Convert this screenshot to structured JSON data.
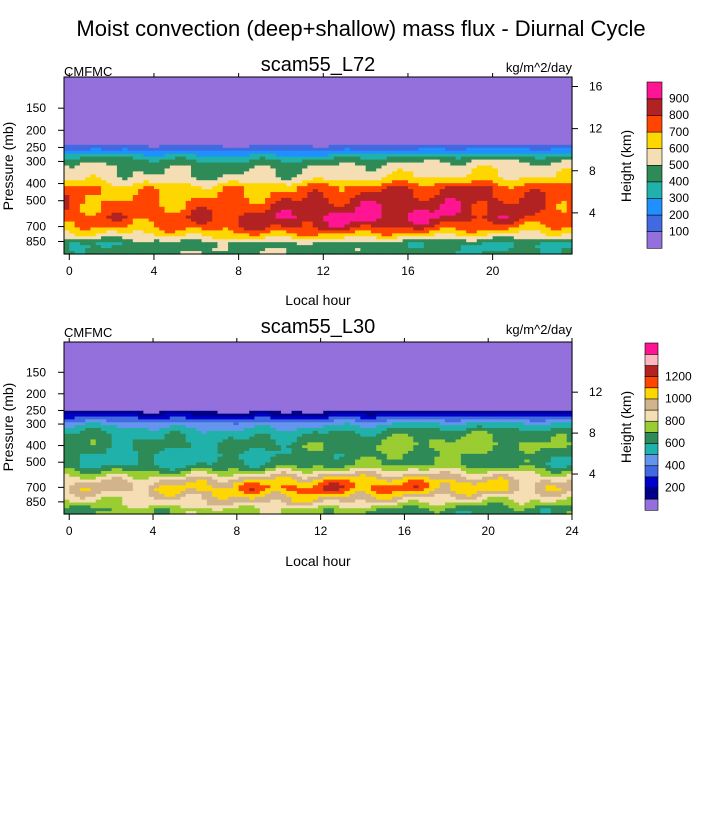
{
  "figure": {
    "title": "Moist convection (deep+shallow) mass flux - Diurnal Cycle"
  },
  "chart_data": [
    {
      "type": "heatmap",
      "title": "scam55_L72",
      "left_label": "CMFMC",
      "right_label": "kg/m^2/day",
      "xlabel": "Local hour",
      "ylabel": "Pressure (mb)",
      "y2label": "Height (km)",
      "x_ticks": [
        0,
        4,
        8,
        12,
        16,
        20
      ],
      "xlim": [
        -0.25,
        23.75
      ],
      "y_ticks": [
        150,
        200,
        250,
        300,
        400,
        500,
        700,
        850
      ],
      "ylim": [
        1000,
        100
      ],
      "y2_ticks": [
        4,
        8,
        12,
        16
      ],
      "colorbar_levels": [
        100,
        200,
        300,
        400,
        500,
        600,
        700,
        800,
        900
      ],
      "colorbar_labels": [
        "100",
        "200",
        "300",
        "400",
        "500",
        "600",
        "700",
        "800",
        "900"
      ],
      "colors": [
        "#9370db",
        "#4169e1",
        "#1e90ff",
        "#20b2aa",
        "#2e8b57",
        "#f5deb3",
        "#ffd700",
        "#ff4500",
        "#b22222",
        "#ff1493"
      ],
      "profile": [
        {
          "p": 100,
          "v": 0
        },
        {
          "p": 150,
          "v": 0
        },
        {
          "p": 235,
          "v": 0
        },
        {
          "p": 250,
          "v": 150
        },
        {
          "p": 270,
          "v": 280
        },
        {
          "p": 290,
          "v": 420
        },
        {
          "p": 320,
          "v": 520
        },
        {
          "p": 370,
          "v": 560
        },
        {
          "p": 420,
          "v": 720
        },
        {
          "p": 500,
          "v": 780
        },
        {
          "p": 620,
          "v": 840
        },
        {
          "p": 700,
          "v": 760
        },
        {
          "p": 770,
          "v": 640
        },
        {
          "p": 830,
          "v": 520
        },
        {
          "p": 880,
          "v": 420
        },
        {
          "p": 950,
          "v": 450
        }
      ]
    },
    {
      "type": "heatmap",
      "title": "scam55_L30",
      "left_label": "CMFMC",
      "right_label": "kg/m^2/day",
      "xlabel": "Local hour",
      "ylabel": "Pressure (mb)",
      "y2label": "Height (km)",
      "x_ticks": [
        0,
        4,
        8,
        12,
        16,
        20,
        24
      ],
      "xlim": [
        -0.25,
        24
      ],
      "y_ticks": [
        150,
        200,
        250,
        300,
        400,
        500,
        700,
        850
      ],
      "ylim": [
        1000,
        100
      ],
      "y2_ticks": [
        4,
        8,
        12
      ],
      "colorbar_levels": [
        100,
        200,
        300,
        400,
        500,
        600,
        700,
        800,
        900,
        1000,
        1100,
        1200,
        1300
      ],
      "colorbar_labels": [
        "200",
        "400",
        "600",
        "800",
        "1000",
        "1200"
      ],
      "colors": [
        "#9370db",
        "#00008b",
        "#0000cd",
        "#4169e1",
        "#6495ed",
        "#20b2aa",
        "#2e8b57",
        "#9acd32",
        "#f5deb3",
        "#d2b48c",
        "#ffd700",
        "#ff4500",
        "#b22222",
        "#ffb6c1",
        "#ff1493"
      ],
      "profile": [
        {
          "p": 100,
          "v": 0
        },
        {
          "p": 150,
          "v": 0
        },
        {
          "p": 245,
          "v": 0
        },
        {
          "p": 260,
          "v": 150
        },
        {
          "p": 275,
          "v": 300
        },
        {
          "p": 300,
          "v": 480
        },
        {
          "p": 340,
          "v": 620
        },
        {
          "p": 400,
          "v": 680
        },
        {
          "p": 450,
          "v": 620
        },
        {
          "p": 520,
          "v": 640
        },
        {
          "p": 580,
          "v": 820
        },
        {
          "p": 650,
          "v": 1000
        },
        {
          "p": 710,
          "v": 1060
        },
        {
          "p": 770,
          "v": 960
        },
        {
          "p": 830,
          "v": 880
        },
        {
          "p": 900,
          "v": 780
        },
        {
          "p": 950,
          "v": 700
        }
      ]
    }
  ]
}
